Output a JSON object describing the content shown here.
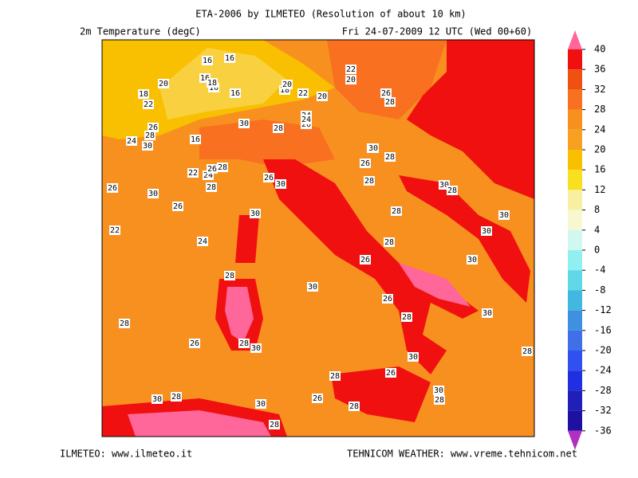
{
  "header": {
    "title": "ETA-2006 by ILMETEO (Resolution of about 10 km)",
    "variable": "2m Temperature (degC)",
    "valid_time": "Fri 24-07-2009 12 UTC (Wed 00+60)"
  },
  "colorbar": {
    "levels": [
      40,
      36,
      32,
      28,
      24,
      20,
      16,
      12,
      8,
      4,
      0,
      -4,
      -8,
      -12,
      -16,
      -20,
      -24,
      -28,
      -32,
      -36
    ],
    "colors": [
      "#ff6699",
      "#f01010",
      "#f05010",
      "#f87020",
      "#f89020",
      "#f8a020",
      "#f8c000",
      "#f8e020",
      "#f8f0a0",
      "#f8f8d0",
      "#d0f8f0",
      "#90f0f0",
      "#60d8e8",
      "#40b8e0",
      "#4090e0",
      "#4070e8",
      "#3050f0",
      "#2030e0",
      "#2020b8",
      "#2010a0",
      "#b030c0"
    ]
  },
  "map": {
    "contour_labels": [
      "16",
      "16",
      "16",
      "18",
      "16",
      "16",
      "20",
      "18",
      "22",
      "20",
      "20",
      "18",
      "22",
      "20",
      "24",
      "22",
      "26",
      "28",
      "26",
      "24",
      "30",
      "28",
      "26",
      "28",
      "24",
      "30",
      "16",
      "30",
      "26",
      "28",
      "30",
      "22",
      "24",
      "26",
      "28",
      "26",
      "30",
      "28",
      "26",
      "30",
      "26",
      "28",
      "30",
      "28",
      "30",
      "22",
      "24",
      "28",
      "30",
      "30",
      "28",
      "26",
      "30",
      "28",
      "30",
      "26",
      "28",
      "28",
      "30",
      "26",
      "28",
      "30",
      "28",
      "30",
      "28",
      "26",
      "30",
      "28",
      "30",
      "28",
      "30",
      "28",
      "26",
      "28"
    ]
  },
  "footer": {
    "left": "ILMETEO: www.ilmeteo.it",
    "right": "TEHNICOM WEATHER: www.vreme.tehnicom.net"
  }
}
